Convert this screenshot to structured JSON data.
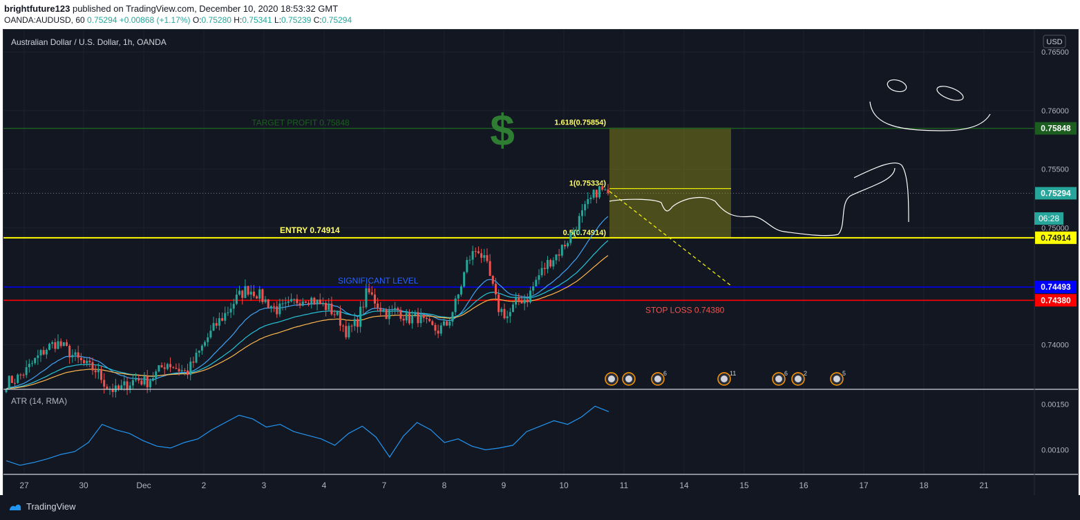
{
  "header": {
    "author": "brightfuture123",
    "published": "published on TradingView.com, December 10, 2020 18:53:32 GMT",
    "symbol": "OANDA:AUDUSD, 60",
    "last": "0.75294",
    "change": "+0.00868 (+1.17%)",
    "o_label": "O:",
    "o": "0.75280",
    "h_label": "H:",
    "h": "0.75341",
    "l_label": "L:",
    "l": "0.75239",
    "c_label": "C:",
    "c": "0.75294"
  },
  "chart": {
    "title": "Australian Dollar / U.S. Dollar, 1h, OANDA",
    "currency_button": "USD",
    "countdown": "06:28",
    "indicator_label": "ATR (14, RMA)"
  },
  "footer": {
    "brand": "TradingView"
  },
  "colors": {
    "background": "#131722",
    "candle_up": "#26a69a",
    "candle_down": "#ef5350",
    "entry": "#ffff00",
    "target": "#1b5e20",
    "significant": "#0000ff",
    "stop": "#ff0000",
    "atr": "#2196f3"
  },
  "chart_data": {
    "type": "line",
    "title": "Australian Dollar / U.S. Dollar, 1h, OANDA",
    "x_tick_labels": [
      "27",
      "30",
      "Dec",
      "2",
      "3",
      "4",
      "7",
      "8",
      "9",
      "10",
      "11",
      "14",
      "15",
      "16",
      "17",
      "18",
      "21"
    ],
    "y_tick_labels": [
      "0.76500",
      "0.76000",
      "0.75500",
      "0.75000",
      "0.74000"
    ],
    "ylim": [
      0.7362,
      0.7669
    ],
    "price_close_path": [
      0.7368,
      0.7371,
      0.7378,
      0.7388,
      0.7397,
      0.7402,
      0.7396,
      0.7388,
      0.7382,
      0.7378,
      0.7365,
      0.736,
      0.7366,
      0.7371,
      0.7368,
      0.7376,
      0.7385,
      0.738,
      0.7376,
      0.739,
      0.7405,
      0.7418,
      0.7428,
      0.744,
      0.7448,
      0.7444,
      0.7436,
      0.743,
      0.7432,
      0.7438,
      0.7441,
      0.7436,
      0.7432,
      0.7425,
      0.741,
      0.742,
      0.7446,
      0.7435,
      0.7426,
      0.743,
      0.7422,
      0.7424,
      0.7416,
      0.7412,
      0.7418,
      0.744,
      0.7472,
      0.7483,
      0.7465,
      0.7432,
      0.7424,
      0.7438,
      0.744,
      0.7458,
      0.747,
      0.7478,
      0.749,
      0.7505,
      0.752,
      0.7533,
      0.7529
    ],
    "levels": [
      {
        "name": "TARGET PROFIT 0.75848",
        "value": 0.75848,
        "tag": "0.75848"
      },
      {
        "name": "ENTRY 0.74914",
        "value": 0.74914,
        "tag": "0.74914"
      },
      {
        "name": "SIGNIFICANT LEVEL",
        "value": 0.74493,
        "tag": "0.74493"
      },
      {
        "name": "STOP LOSS 0.74380",
        "value": 0.7438,
        "tag": "0.74380"
      }
    ],
    "last_price": {
      "value": 0.75294,
      "tag": "0.75294"
    },
    "fibonacci": [
      {
        "label": "1.618(0.75854)",
        "value": 0.75854
      },
      {
        "label": "1(0.75334)",
        "value": 0.75334
      },
      {
        "label": "0.5(0.74914)",
        "value": 0.74914
      }
    ],
    "atr": {
      "name": "ATR (14, RMA)",
      "y_tick_labels": [
        "0.00150",
        "0.00100"
      ],
      "ylim": [
        0.00073,
        0.00165
      ],
      "values": [
        0.00088,
        0.00083,
        0.00086,
        0.0009,
        0.00095,
        0.00098,
        0.00108,
        0.00128,
        0.00122,
        0.00118,
        0.0011,
        0.00104,
        0.00102,
        0.00108,
        0.00112,
        0.00122,
        0.0013,
        0.00138,
        0.00134,
        0.00125,
        0.00128,
        0.0012,
        0.00116,
        0.00112,
        0.00105,
        0.00118,
        0.00126,
        0.00114,
        0.00092,
        0.00115,
        0.0013,
        0.00122,
        0.00108,
        0.00112,
        0.00104,
        0.001,
        0.00102,
        0.00105,
        0.0012,
        0.00126,
        0.00132,
        0.00128,
        0.00136,
        0.00148,
        0.00142
      ]
    }
  }
}
